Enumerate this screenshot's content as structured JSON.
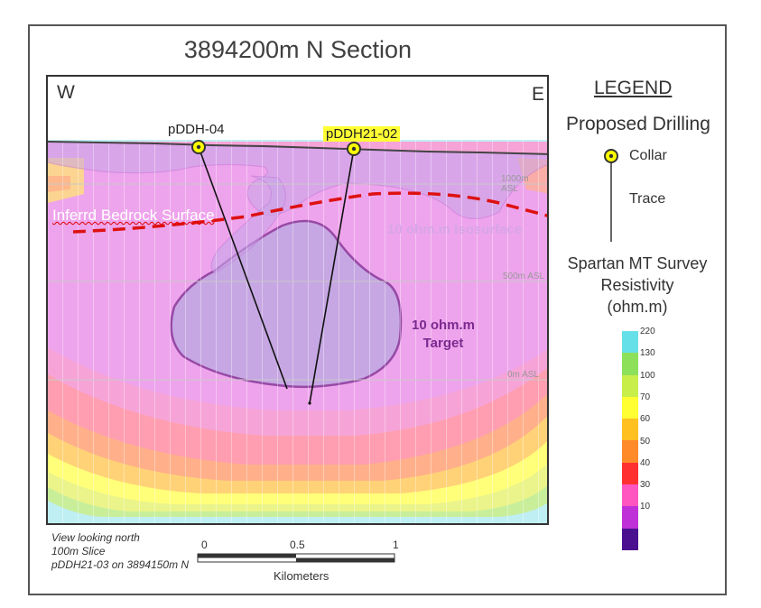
{
  "title": "3894200m N Section",
  "direction": {
    "west": "W",
    "east": "E"
  },
  "holes": [
    {
      "id": "pDDH-04",
      "highlight": false
    },
    {
      "id": "pDDH21-02",
      "highlight": true
    }
  ],
  "elevations": [
    "1000m ASL",
    "500m ASL",
    "0m ASL"
  ],
  "labels": {
    "bedrock": "Inferrd Bedrock Surface",
    "isosurface": "10 ohm.m Isosurface",
    "target_line1": "10 ohm.m",
    "target_line2": "Target"
  },
  "legend": {
    "heading": "LEGEND",
    "proposed": "Proposed Drilling",
    "collar": "Collar",
    "trace": "Trace",
    "resistivity_title_1": "Spartan MT Survey",
    "resistivity_title_2": "Resistivity",
    "resistivity_title_3": "(ohm.m)",
    "scale": [
      {
        "value": "220",
        "color": "#66e0e8"
      },
      {
        "value": "130",
        "color": "#8de05a"
      },
      {
        "value": "100",
        "color": "#c8ee4a"
      },
      {
        "value": "70",
        "color": "#ffff33"
      },
      {
        "value": "60",
        "color": "#ffc020"
      },
      {
        "value": "50",
        "color": "#ff8a2a"
      },
      {
        "value": "40",
        "color": "#ff3030"
      },
      {
        "value": "30",
        "color": "#ff55c0"
      },
      {
        "value": "10",
        "color": "#c030d8"
      },
      {
        "value": "",
        "color": "#4a1090"
      }
    ]
  },
  "notes": {
    "line1": "View looking north",
    "line2": "100m Slice",
    "line3": "pDDH21-03 on 3894150m N"
  },
  "scalebar": {
    "v0": "0",
    "v1": "0.5",
    "v2": "1",
    "unit": "Kilometers"
  },
  "colors": {
    "background_pink": "#eea4ec",
    "target_outline": "#7a2b8f",
    "bedrock_line": "#dd1111",
    "collar_fill": "#ffff00"
  }
}
